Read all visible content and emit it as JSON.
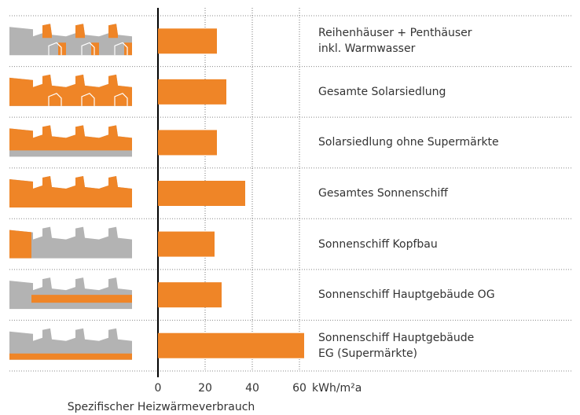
{
  "chart_data": {
    "type": "bar",
    "orientation": "horizontal",
    "categories": [
      "Reihenhäuser + Penthäuser\ninkl. Warmwasser",
      "Gesamte Solarsiedlung",
      "Solarsiedlung ohne Supermärkte",
      "Gesamtes Sonnenschiff",
      "Sonnenschiff Kopfbau",
      "Sonnenschiff Hauptgebäude OG",
      "Sonnenschiff Hauptgebäude\nEG (Supermärkte)"
    ],
    "values": [
      25,
      29,
      25,
      37,
      24,
      27,
      62
    ],
    "color": "#ef8527",
    "xlim": [
      0,
      60
    ],
    "xticks": [
      0,
      20,
      40,
      60
    ],
    "x_unit": "kWh/m²a",
    "xlabel": "Spezifischer Heizwärmeverbrauch",
    "grid": true
  }
}
